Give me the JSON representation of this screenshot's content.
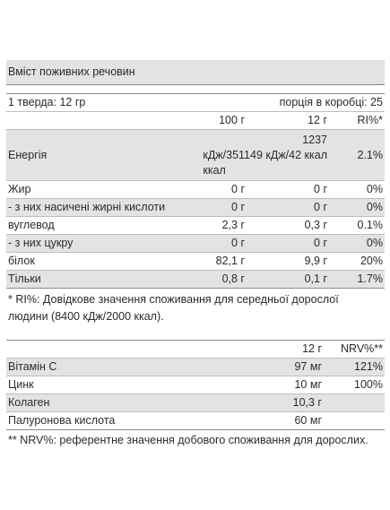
{
  "title": "Вміст поживних речовин",
  "serving": {
    "left": "1 тверда: 12 гр",
    "right": "порція в коробці: 25"
  },
  "nutrients": {
    "headers": [
      "100 г",
      "12 г",
      "RI%*"
    ],
    "energy": {
      "name": "Енергія",
      "value_lines": [
        "1237",
        "кДж/351149 кДж/42 ккал",
        "ккал"
      ],
      "ri": "2.1%"
    },
    "rows": [
      {
        "name": "Жир",
        "per100": "0 г",
        "per12": "0 г",
        "ri": "0%"
      },
      {
        "name": "- з них насичені жирні кислоти",
        "per100": "0 г",
        "per12": "0 г",
        "ri": "0%"
      },
      {
        "name": "вуглевод",
        "per100": "2,3 г",
        "per12": "0,3 г",
        "ri": "0.1%"
      },
      {
        "name": "- з них цукру",
        "per100": "0 г",
        "per12": "0 г",
        "ri": "0%"
      },
      {
        "name": "білок",
        "per100": "82,1 г",
        "per12": "9,9 г",
        "ri": "20%"
      },
      {
        "name": "Тільки",
        "per100": "0,8 г",
        "per12": "0,1 г",
        "ri": "1.7%"
      }
    ],
    "footnote_line1": "* RI%: Довідкове значення споживання для середньої дорослої",
    "footnote_line2": "людини (8400 кДж/2000 ккал)."
  },
  "vitamins": {
    "headers": [
      "12 г",
      "NRV%**"
    ],
    "rows": [
      {
        "name": "Вітамін С",
        "amount": "97 мг",
        "nrv": "121%"
      },
      {
        "name": "Цинк",
        "amount": "10 мг",
        "nrv": "100%"
      },
      {
        "name": "Колаген",
        "amount": "10,3 г",
        "nrv": ""
      },
      {
        "name": "Палуронова кислота",
        "amount": "60 мг",
        "nrv": ""
      }
    ],
    "footnote": "** NRV%: референтне значення добового споживання для дорослих."
  }
}
